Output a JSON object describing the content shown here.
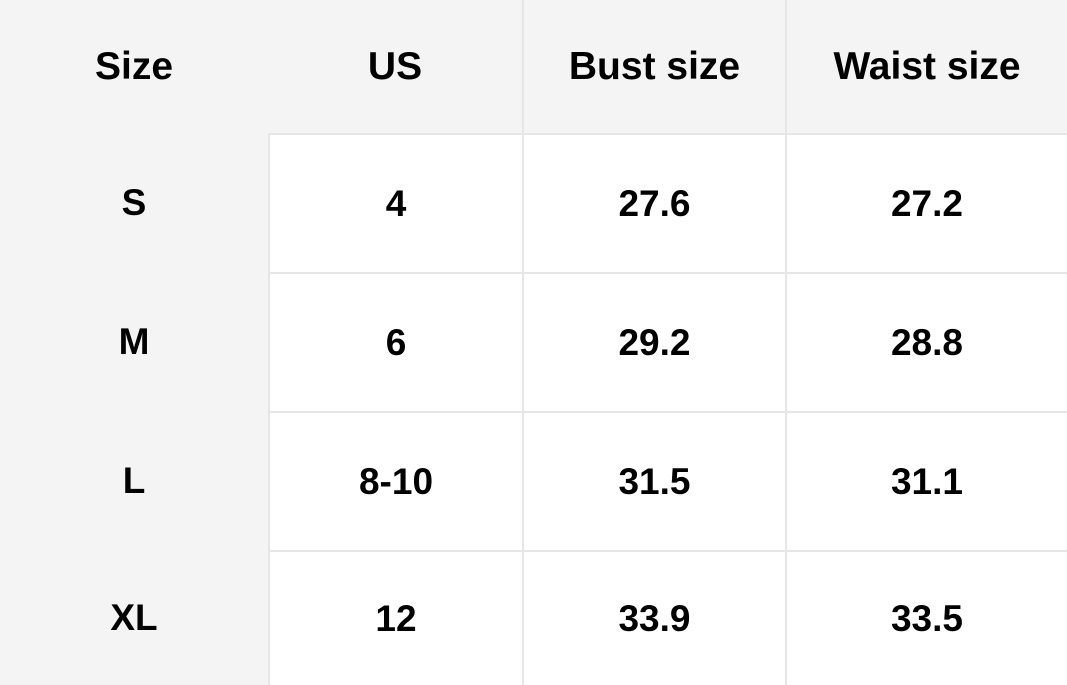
{
  "table": {
    "headers": [
      "Size",
      "US",
      "Bust size",
      "Waist size"
    ],
    "rows": [
      [
        "S",
        "4",
        "27.6",
        "27.2"
      ],
      [
        "M",
        "6",
        "29.2",
        "28.8"
      ],
      [
        "L",
        "8-10",
        "31.5",
        "31.1"
      ],
      [
        "XL",
        "12",
        "33.9",
        "33.5"
      ]
    ]
  },
  "colors": {
    "header_bg": "#f4f4f4",
    "cell_bg": "#ffffff",
    "border": "#e6e6e6",
    "text": "#000000"
  }
}
